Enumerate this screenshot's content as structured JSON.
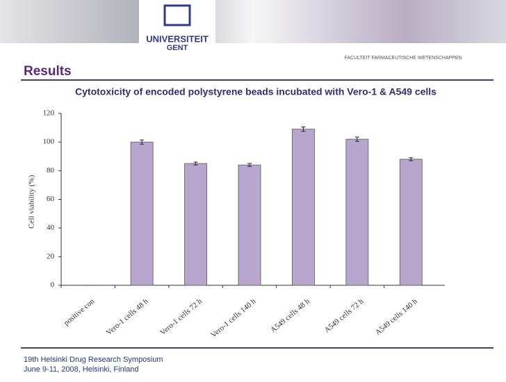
{
  "header": {
    "university": "UNIVERSITEIT",
    "city": "GENT",
    "faculty": "FACULTEIT FARMACEUTISCHE WETENSCHAPPEN",
    "section": "Results"
  },
  "chart_data": {
    "type": "bar",
    "title": "Cytotoxicity of encoded polystyrene beads incubated with Vero-1 & A549 cells",
    "y_label": "Cell viability (%)",
    "categories": [
      "positive con",
      "Vero-1 cells 48 h",
      "Vero-1 cells 72 h",
      "Vero-1 cells 140 h",
      "A549 cells 48 h",
      "A549 cells 72 h",
      "A549 cells 140 h"
    ],
    "values": [
      0,
      100,
      85,
      84,
      109,
      102,
      88
    ],
    "errors": [
      0,
      1.5,
      1,
      1,
      1.5,
      1.5,
      1
    ],
    "color": "#b7a6cd",
    "ylim": [
      0,
      120
    ],
    "yticks": [
      0,
      20,
      40,
      60,
      80,
      100,
      120
    ]
  },
  "footer": {
    "line1": "19th Helsinki Drug Research  Symposium",
    "line2": "June 9-11, 2008, Helsinki, Finland"
  }
}
